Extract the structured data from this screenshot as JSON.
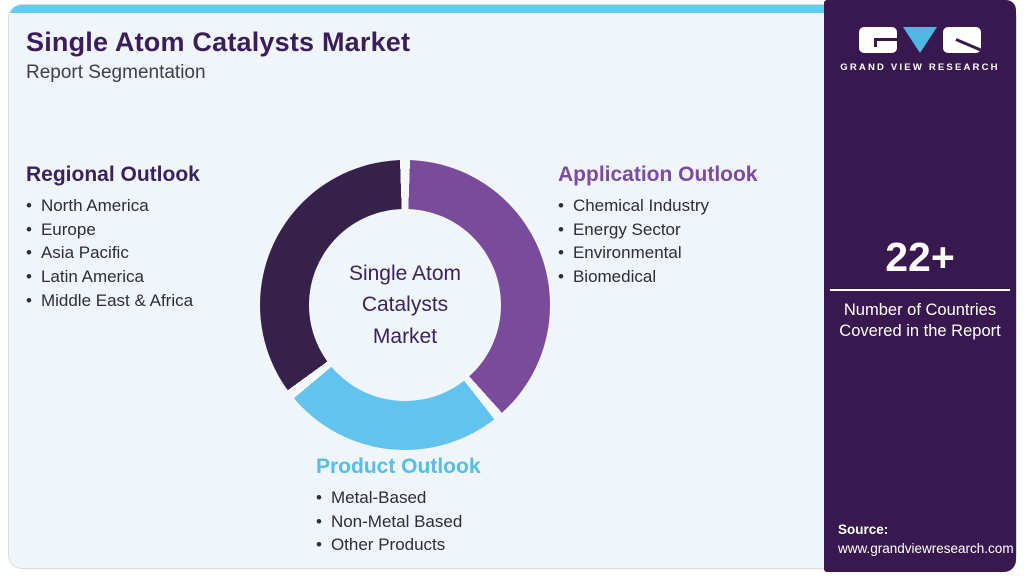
{
  "header": {
    "title": "Single Atom Catalysts Market",
    "subtitle": "Report Segmentation"
  },
  "sections": {
    "regional": {
      "title": "Regional Outlook",
      "items": [
        "North America",
        "Europe",
        "Asia Pacific",
        "Latin America",
        "Middle East & Africa"
      ]
    },
    "application": {
      "title": "Application Outlook",
      "items": [
        "Chemical Industry",
        "Energy Sector",
        "Environmental",
        "Biomedical"
      ]
    },
    "product": {
      "title": "Product Outlook",
      "items": [
        "Metal-Based",
        "Non-Metal Based",
        "Other Products"
      ]
    }
  },
  "chart_data": {
    "type": "pie",
    "style": "donut",
    "title": "Single Atom Catalysts Market",
    "center_label": "Single Atom\nCatalysts\nMarket",
    "gap_color": "#f4f8fb",
    "legend_position": "around",
    "segments": [
      {
        "label": "Application Outlook",
        "color": "#7a4a9b",
        "start_deg": 2,
        "end_deg": 138,
        "approx_share_pct": 37.8
      },
      {
        "label": "Product Outlook",
        "color": "#62c4ee",
        "start_deg": 142,
        "end_deg": 230,
        "approx_share_pct": 24.4
      },
      {
        "label": "Regional Outlook",
        "color": "#35214a",
        "start_deg": 234,
        "end_deg": 358,
        "approx_share_pct": 34.4
      }
    ]
  },
  "sidebar": {
    "logo": {
      "brand": "GRAND VIEW RESEARCH"
    },
    "stat": {
      "value": "22+",
      "caption": "Number of Countries Covered in the Report"
    },
    "source": {
      "label": "Source:",
      "url": "www.grandviewresearch.com"
    }
  },
  "colors": {
    "accent_strip": "#5ecbf2",
    "card_bg": "#eff5fa",
    "title": "#3a1d5a",
    "subtitle": "#3f3f46",
    "sidebar_bg": "#38184f",
    "regional_heading": "#3a2260",
    "application_heading": "#7d4ba5",
    "product_heading": "#53bfea",
    "logo_v_blue": "#4db9e2"
  }
}
